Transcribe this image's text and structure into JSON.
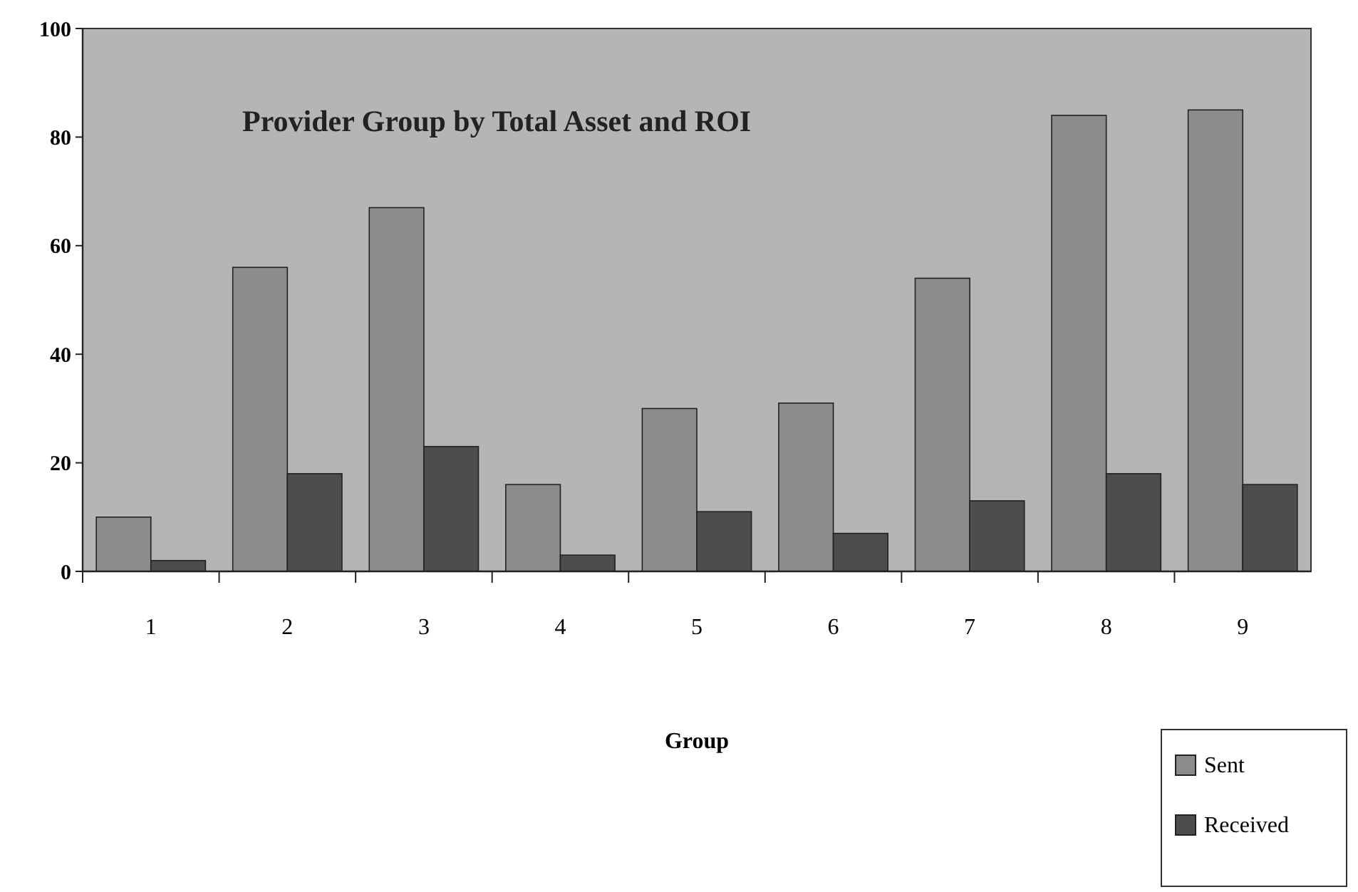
{
  "chart_data": {
    "type": "bar",
    "title": "Provider Group by Total Asset and ROI",
    "xlabel": "Group",
    "categories": [
      "1",
      "2",
      "3",
      "4",
      "5",
      "6",
      "7",
      "8",
      "9"
    ],
    "series": [
      {
        "name": "Sent",
        "color": "#8c8c8c",
        "values": [
          10,
          56,
          67,
          16,
          30,
          31,
          54,
          84,
          85
        ]
      },
      {
        "name": "Received",
        "color": "#4d4d4d",
        "values": [
          2,
          18,
          23,
          3,
          11,
          7,
          13,
          18,
          16
        ]
      }
    ],
    "ylim": [
      0,
      100
    ],
    "yticks": [
      0,
      20,
      40,
      60,
      80,
      100
    ],
    "legend": "bottom right"
  }
}
